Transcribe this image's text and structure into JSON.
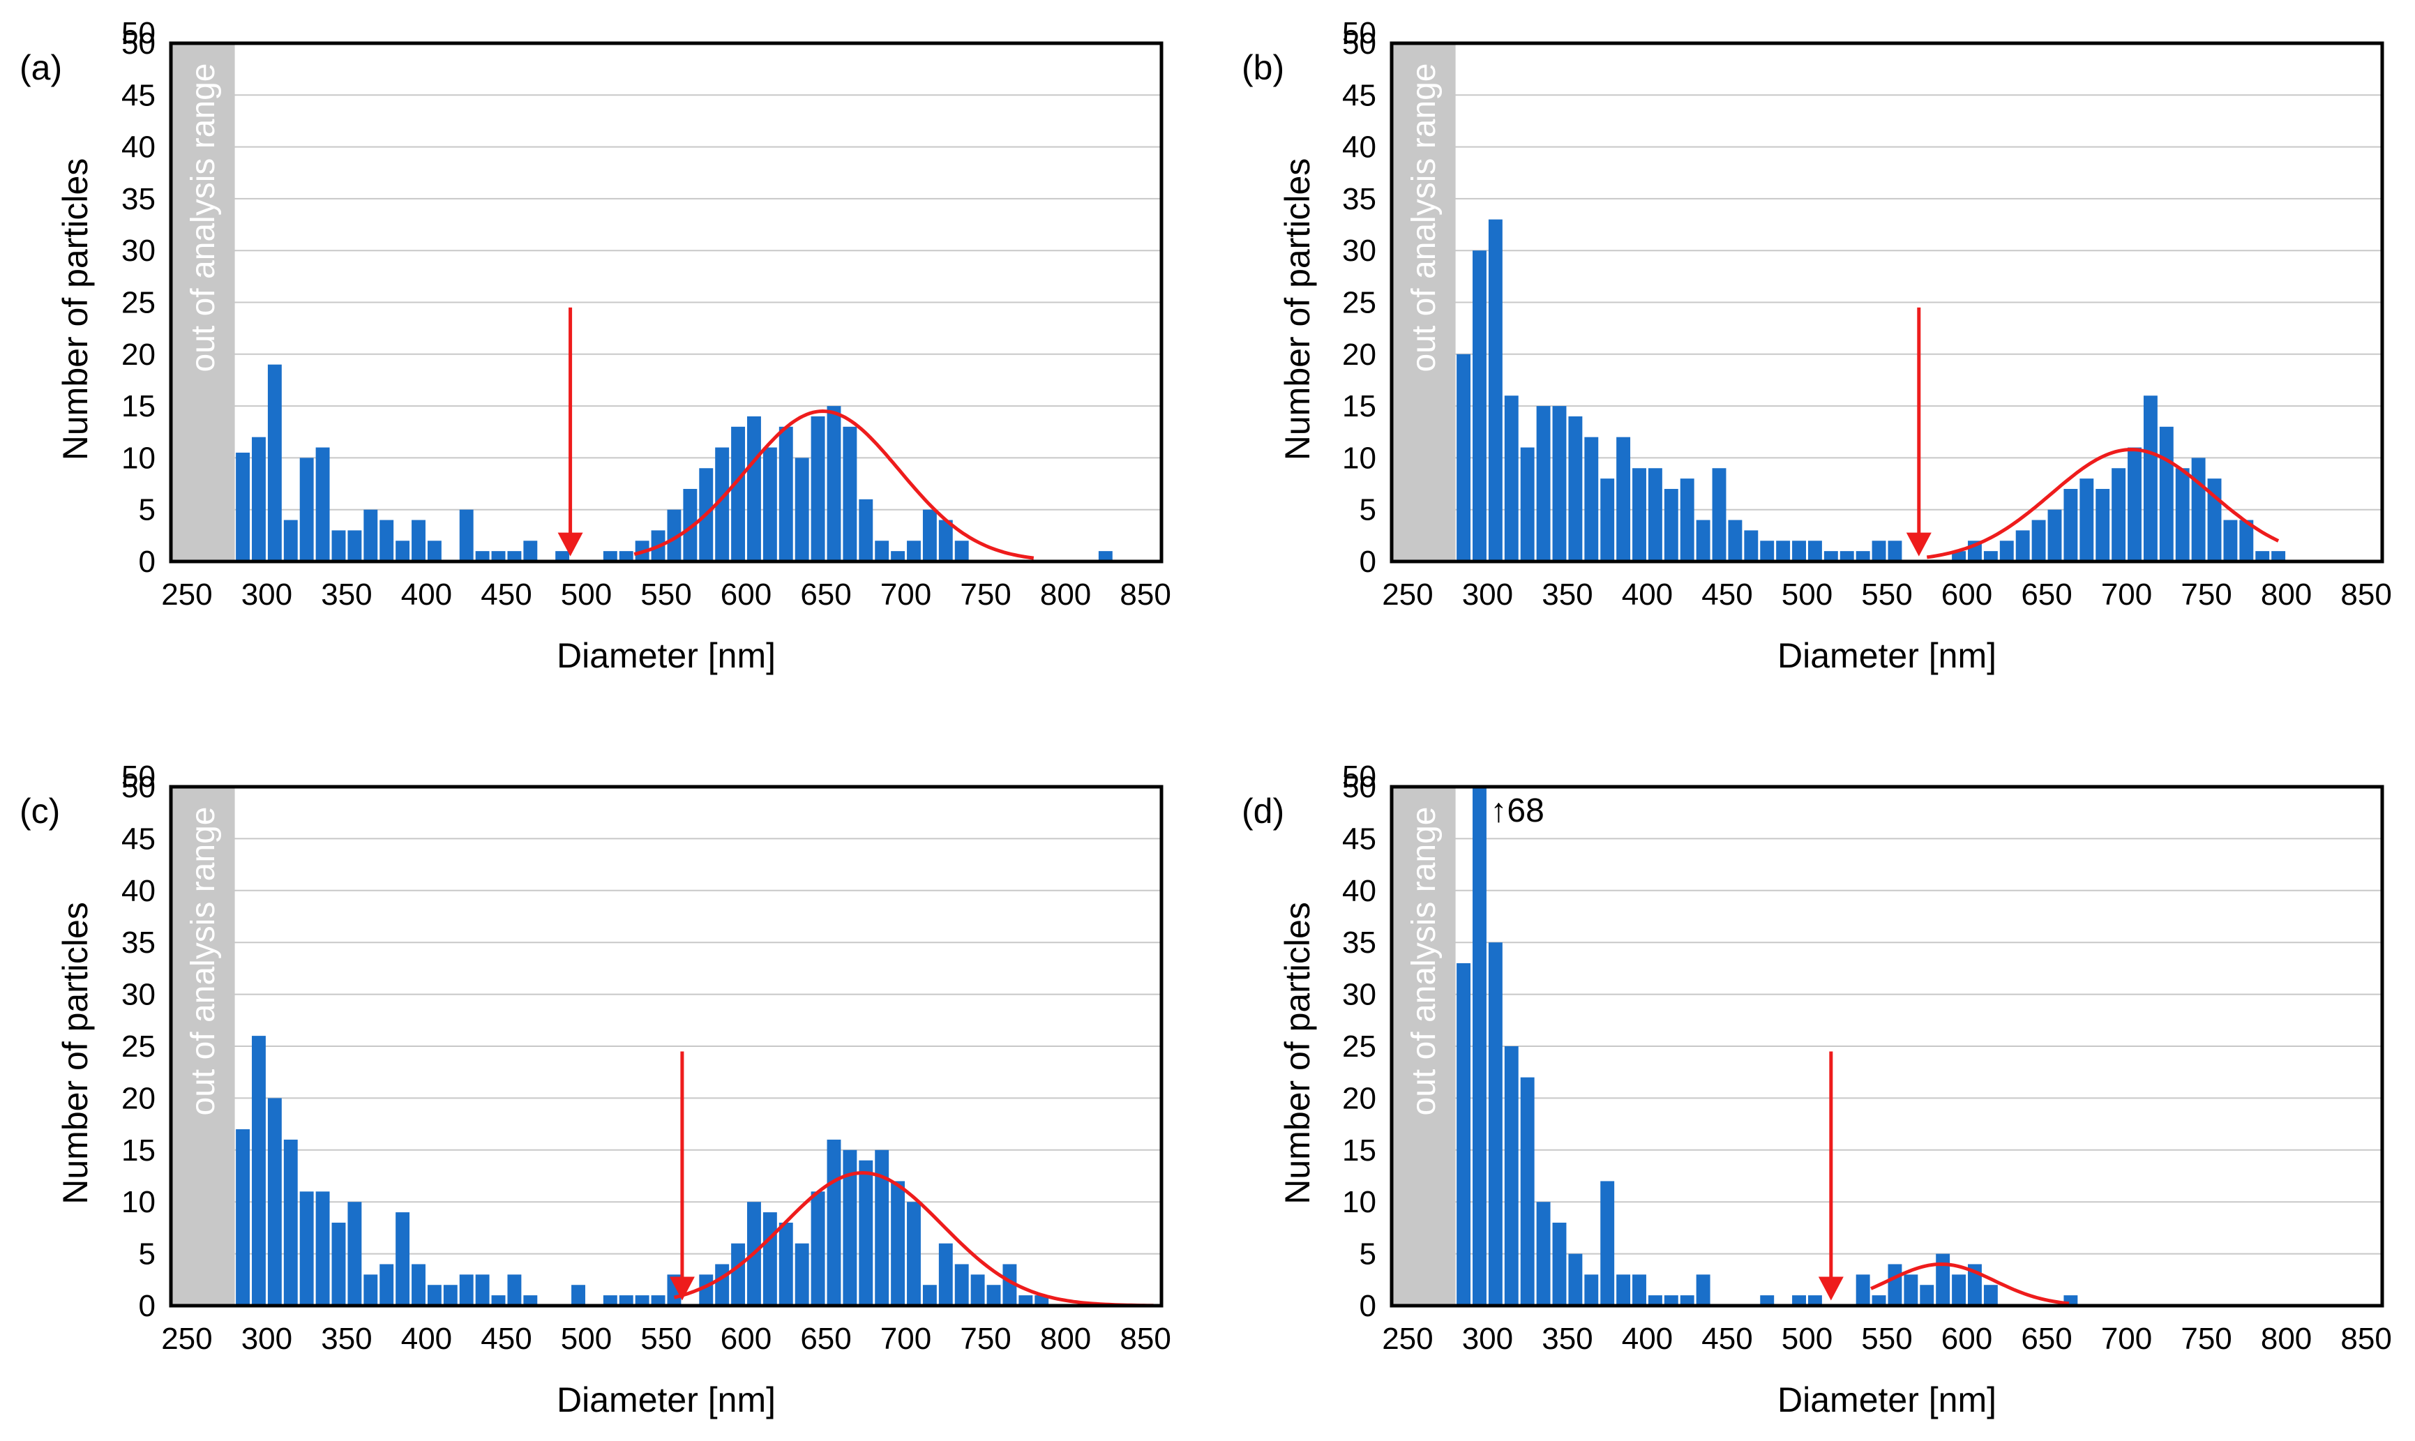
{
  "colors": {
    "bar": "#1a6fc9",
    "fit": "#ee1c1c",
    "marker": "#ee1c1c",
    "grid": "#c8c8c8",
    "shade": "#c8c8c8"
  },
  "chart_data": [
    {
      "type": "bar",
      "panel_label": "(a)",
      "xlabel": "Diameter [nm]",
      "ylabel": "Number of particles",
      "xlim": [
        240,
        860
      ],
      "ylim": [
        0,
        50
      ],
      "xticks": [
        "250",
        "300",
        "350",
        "400",
        "450",
        "500",
        "550",
        "600",
        "650",
        "700",
        "750",
        "800",
        "850"
      ],
      "yticks": [
        "0",
        "5",
        "10",
        "15",
        "20",
        "25",
        "30",
        "35",
        "40",
        "45",
        "50",
        "50"
      ],
      "shaded_region": {
        "from": 240,
        "to": 280,
        "label": "out of analysis range"
      },
      "bin_width": 10,
      "x": [
        285,
        295,
        305,
        315,
        325,
        335,
        345,
        355,
        365,
        375,
        385,
        395,
        405,
        415,
        425,
        435,
        445,
        455,
        465,
        475,
        485,
        495,
        505,
        515,
        525,
        535,
        545,
        555,
        565,
        575,
        585,
        595,
        605,
        615,
        625,
        635,
        645,
        655,
        665,
        675,
        685,
        695,
        705,
        715,
        725,
        735,
        745,
        755,
        765,
        775,
        785,
        795,
        805,
        815,
        825
      ],
      "values": [
        10.5,
        12,
        19,
        4,
        10,
        11,
        3,
        3,
        5,
        4,
        2,
        4,
        2,
        0,
        5,
        1,
        1,
        1,
        2,
        0,
        1,
        0,
        0,
        1,
        1,
        2,
        3,
        5,
        7,
        9,
        11,
        13,
        14,
        11,
        13,
        10,
        14,
        15,
        13,
        6,
        2,
        1,
        2,
        5,
        4,
        2,
        0,
        0,
        0,
        0,
        0,
        0,
        0,
        0,
        1
      ],
      "fit": {
        "type": "gaussian",
        "mean": 648,
        "sd": 48,
        "peak": 14.5,
        "x_from": 530,
        "x_to": 780
      },
      "marker": {
        "x": 490,
        "label": "threshold arrow"
      }
    },
    {
      "type": "bar",
      "panel_label": "(b)",
      "xlabel": "Diameter [nm]",
      "ylabel": "Number of particles",
      "xlim": [
        240,
        860
      ],
      "ylim": [
        0,
        50
      ],
      "xticks": [
        "250",
        "300",
        "350",
        "400",
        "450",
        "500",
        "550",
        "600",
        "650",
        "700",
        "750",
        "800",
        "850"
      ],
      "yticks": [
        "0",
        "5",
        "10",
        "15",
        "20",
        "25",
        "30",
        "35",
        "40",
        "45",
        "50",
        "50"
      ],
      "shaded_region": {
        "from": 240,
        "to": 280,
        "label": "out of analysis range"
      },
      "bin_width": 10,
      "x": [
        285,
        295,
        305,
        315,
        325,
        335,
        345,
        355,
        365,
        375,
        385,
        395,
        405,
        415,
        425,
        435,
        445,
        455,
        465,
        475,
        485,
        495,
        505,
        515,
        525,
        535,
        545,
        555,
        565,
        575,
        585,
        595,
        605,
        615,
        625,
        635,
        645,
        655,
        665,
        675,
        685,
        695,
        705,
        715,
        725,
        735,
        745,
        755,
        765,
        775,
        785,
        795
      ],
      "values": [
        20,
        30,
        33,
        16,
        11,
        15,
        15,
        14,
        12,
        8,
        12,
        9,
        9,
        7,
        8,
        4,
        9,
        4,
        3,
        2,
        2,
        2,
        2,
        1,
        1,
        1,
        2,
        2,
        0,
        0,
        0,
        1,
        2,
        1,
        2,
        3,
        4,
        5,
        7,
        8,
        7,
        9,
        11,
        16,
        13,
        9,
        10,
        8,
        4,
        4,
        1,
        1
      ],
      "fit": {
        "type": "gaussian",
        "mean": 703,
        "sd": 50,
        "peak": 10.8,
        "x_from": 575,
        "x_to": 795
      },
      "marker": {
        "x": 570,
        "label": "threshold arrow"
      }
    },
    {
      "type": "bar",
      "panel_label": "(c)",
      "xlabel": "Diameter [nm]",
      "ylabel": "Number of particles",
      "xlim": [
        240,
        860
      ],
      "ylim": [
        0,
        50
      ],
      "xticks": [
        "250",
        "300",
        "350",
        "400",
        "450",
        "500",
        "550",
        "600",
        "650",
        "700",
        "750",
        "800",
        "850"
      ],
      "yticks": [
        "0",
        "5",
        "10",
        "15",
        "20",
        "25",
        "30",
        "35",
        "40",
        "45",
        "50",
        "50"
      ],
      "shaded_region": {
        "from": 240,
        "to": 280,
        "label": "out of analysis range"
      },
      "bin_width": 10,
      "x": [
        285,
        295,
        305,
        315,
        325,
        335,
        345,
        355,
        365,
        375,
        385,
        395,
        405,
        415,
        425,
        435,
        445,
        455,
        465,
        475,
        485,
        495,
        505,
        515,
        525,
        535,
        545,
        555,
        565,
        575,
        585,
        595,
        605,
        615,
        625,
        635,
        645,
        655,
        665,
        675,
        685,
        695,
        705,
        715,
        725,
        735,
        745,
        755,
        765,
        775,
        785,
        795
      ],
      "values": [
        17,
        26,
        20,
        16,
        11,
        11,
        8,
        10,
        3,
        4,
        9,
        4,
        2,
        2,
        3,
        3,
        1,
        3,
        1,
        0,
        0,
        2,
        0,
        1,
        1,
        1,
        1,
        3,
        0,
        3,
        4,
        6,
        10,
        9,
        8,
        6,
        11,
        16,
        15,
        14,
        15,
        12,
        10,
        2,
        6,
        4,
        3,
        2,
        4,
        1,
        1,
        0
      ],
      "fit": {
        "type": "gaussian",
        "mean": 673,
        "sd": 50,
        "peak": 12.8,
        "x_from": 555,
        "x_to": 855
      },
      "marker": {
        "x": 560,
        "label": "threshold arrow"
      }
    },
    {
      "type": "bar",
      "panel_label": "(d)",
      "xlabel": "Diameter [nm]",
      "ylabel": "Number of particles",
      "xlim": [
        240,
        860
      ],
      "ylim": [
        0,
        50
      ],
      "xticks": [
        "250",
        "300",
        "350",
        "400",
        "450",
        "500",
        "550",
        "600",
        "650",
        "700",
        "750",
        "800",
        "850"
      ],
      "yticks": [
        "0",
        "5",
        "10",
        "15",
        "20",
        "25",
        "30",
        "35",
        "40",
        "45",
        "50",
        "50"
      ],
      "shaded_region": {
        "from": 240,
        "to": 280,
        "label": "out of analysis range"
      },
      "bin_width": 10,
      "x": [
        285,
        295,
        305,
        315,
        325,
        335,
        345,
        355,
        365,
        375,
        385,
        395,
        405,
        415,
        425,
        435,
        445,
        455,
        465,
        475,
        485,
        495,
        505,
        515,
        525,
        535,
        545,
        555,
        565,
        575,
        585,
        595,
        605,
        615,
        625,
        635,
        645,
        655,
        665
      ],
      "values": [
        33,
        68,
        35,
        25,
        22,
        10,
        8,
        5,
        3,
        12,
        3,
        3,
        1,
        1,
        1,
        3,
        0,
        0,
        0,
        1,
        0,
        1,
        1,
        0,
        0,
        3,
        1,
        4,
        3,
        2,
        5,
        3,
        4,
        2,
        0,
        0,
        0,
        0,
        1
      ],
      "clipped_annotation": "↑68",
      "fit": {
        "type": "gaussian",
        "mean": 584,
        "sd": 33,
        "peak": 4,
        "x_from": 540,
        "x_to": 665
      },
      "marker": {
        "x": 515,
        "label": "threshold arrow"
      }
    }
  ]
}
